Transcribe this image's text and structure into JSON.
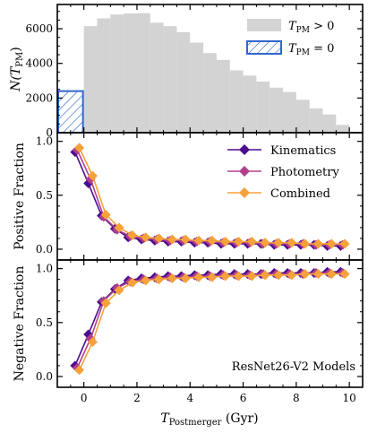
{
  "chart_data": [
    {
      "type": "bar",
      "panel": "top",
      "ylabel": "N(T_PM)",
      "ylabel_main": "N(T",
      "ylabel_sub": "PM",
      "ylabel_close": ")",
      "xlim": [
        -1,
        10.5
      ],
      "ylim": [
        0,
        7400
      ],
      "yticks": [
        0,
        2000,
        4000,
        6000
      ],
      "yticklabels": [
        "0",
        "2000",
        "4000",
        "6000"
      ],
      "bin_width": 0.5,
      "bins_x0": [
        0.0,
        0.5,
        1.0,
        1.5,
        2.0,
        2.5,
        3.0,
        3.5,
        4.0,
        4.5,
        5.0,
        5.5,
        6.0,
        6.5,
        7.0,
        7.5,
        8.0,
        8.5,
        9.0,
        9.5
      ],
      "counts_positive": [
        6150,
        6600,
        6820,
        6880,
        6900,
        6350,
        6150,
        5800,
        5200,
        4600,
        4200,
        3600,
        3300,
        2950,
        2600,
        2350,
        1900,
        1400,
        1050,
        450
      ],
      "count_zero": 2400,
      "zero_bin_x0": -1.0,
      "zero_bin_x1": 0.0,
      "series": [
        {
          "name": "T_PM > 0",
          "label_main": "T",
          "label_sub": "PM",
          "label_rel": " > 0",
          "color": "#d3d3d3"
        },
        {
          "name": "T_PM = 0",
          "label_main": "T",
          "label_sub": "PM",
          "label_rel": " = 0",
          "color": "#3366cc",
          "hatch": true
        }
      ]
    },
    {
      "type": "line",
      "panel": "middle",
      "ylabel": "Positive Fraction",
      "ylim": [
        -0.1,
        1.08
      ],
      "yticks": [
        0.0,
        0.5,
        1.0
      ],
      "yticklabels": [
        "0.0",
        "0.5",
        "1.0"
      ],
      "x_offsets": [
        -0.08,
        0,
        0.08
      ],
      "x": [
        -0.25,
        0.25,
        0.75,
        1.25,
        1.75,
        2.25,
        2.75,
        3.25,
        3.75,
        4.25,
        4.75,
        5.25,
        5.75,
        6.25,
        6.75,
        7.25,
        7.75,
        8.25,
        8.75,
        9.25,
        9.75
      ],
      "series": [
        {
          "name": "Kinematics",
          "color": "#4b0c8f",
          "values": [
            0.9,
            0.61,
            0.31,
            0.19,
            0.11,
            0.09,
            0.08,
            0.07,
            0.07,
            0.06,
            0.06,
            0.05,
            0.05,
            0.05,
            0.05,
            0.04,
            0.04,
            0.04,
            0.04,
            0.03,
            0.03
          ]
        },
        {
          "name": "Photometry",
          "color": "#b0408c",
          "values": [
            0.92,
            0.65,
            0.3,
            0.18,
            0.12,
            0.1,
            0.09,
            0.08,
            0.08,
            0.07,
            0.07,
            0.06,
            0.06,
            0.06,
            0.05,
            0.05,
            0.05,
            0.05,
            0.04,
            0.04,
            0.04
          ]
        },
        {
          "name": "Combined",
          "color": "#f5a23a",
          "values": [
            0.94,
            0.68,
            0.32,
            0.2,
            0.13,
            0.11,
            0.1,
            0.09,
            0.09,
            0.08,
            0.08,
            0.07,
            0.07,
            0.07,
            0.06,
            0.06,
            0.06,
            0.05,
            0.05,
            0.05,
            0.05
          ]
        }
      ],
      "legend": "top-right"
    },
    {
      "type": "line",
      "panel": "bottom",
      "ylabel": "Negative Fraction",
      "xlabel": "T_Postmerger (Gyr)",
      "xlabel_main": "T",
      "xlabel_sub": "Postmerger",
      "xlabel_rest": " (Gyr)",
      "annotation": "ResNet26-V2 Models",
      "xlim": [
        -1,
        10.5
      ],
      "xticks": [
        0,
        2,
        4,
        6,
        8,
        10
      ],
      "xticklabels": [
        "0",
        "2",
        "4",
        "6",
        "8",
        "10"
      ],
      "ylim": [
        -0.1,
        1.08
      ],
      "yticks": [
        0.0,
        0.5,
        1.0
      ],
      "yticklabels": [
        "0.0",
        "0.5",
        "1.0"
      ],
      "x_offsets": [
        -0.08,
        0,
        0.08
      ],
      "x": [
        -0.25,
        0.25,
        0.75,
        1.25,
        1.75,
        2.25,
        2.75,
        3.25,
        3.75,
        4.25,
        4.75,
        5.25,
        5.75,
        6.25,
        6.75,
        7.25,
        7.75,
        8.25,
        8.75,
        9.25,
        9.75
      ],
      "series": [
        {
          "name": "Kinematics",
          "color": "#4b0c8f",
          "values": [
            0.1,
            0.39,
            0.69,
            0.81,
            0.89,
            0.91,
            0.92,
            0.93,
            0.93,
            0.94,
            0.94,
            0.95,
            0.95,
            0.95,
            0.95,
            0.96,
            0.96,
            0.96,
            0.96,
            0.97,
            0.97
          ]
        },
        {
          "name": "Photometry",
          "color": "#b0408c",
          "values": [
            0.08,
            0.35,
            0.7,
            0.82,
            0.88,
            0.9,
            0.91,
            0.92,
            0.92,
            0.93,
            0.93,
            0.94,
            0.94,
            0.94,
            0.95,
            0.95,
            0.95,
            0.95,
            0.96,
            0.96,
            0.96
          ]
        },
        {
          "name": "Combined",
          "color": "#f5a23a",
          "values": [
            0.06,
            0.32,
            0.68,
            0.8,
            0.87,
            0.89,
            0.9,
            0.91,
            0.91,
            0.92,
            0.92,
            0.93,
            0.93,
            0.93,
            0.94,
            0.94,
            0.94,
            0.95,
            0.95,
            0.95,
            0.95
          ]
        }
      ]
    }
  ]
}
